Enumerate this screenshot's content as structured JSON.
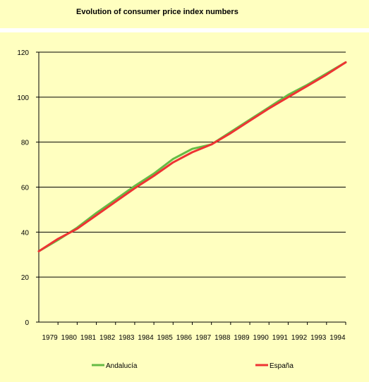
{
  "chart_data": {
    "type": "line",
    "title": "Evolution of consumer price index numbers",
    "xlabel": "",
    "ylabel": "",
    "ylim": [
      0,
      120
    ],
    "yticks": [
      0,
      20,
      40,
      60,
      80,
      100,
      120
    ],
    "xlim": [
      1978,
      1994
    ],
    "xticks": [
      1979,
      1980,
      1981,
      1982,
      1983,
      1984,
      1985,
      1986,
      1987,
      1988,
      1989,
      1990,
      1991,
      1992,
      1993,
      1994
    ],
    "grid": true,
    "legend_placement": "bottom",
    "series": [
      {
        "name": "Andalucía",
        "color": "#66bb44",
        "x": [
          1978,
          1979,
          1980,
          1981,
          1982,
          1983,
          1984,
          1985,
          1986,
          1987,
          1988,
          1989,
          1990,
          1991,
          1992,
          1993,
          1994
        ],
        "values": [
          31.5,
          36.5,
          42.0,
          48.5,
          54.5,
          60.5,
          66.0,
          72.5,
          77.0,
          79.0,
          84.5,
          90.0,
          95.5,
          101.0,
          105.5,
          110.5,
          115.5
        ]
      },
      {
        "name": "España",
        "color": "#ee3333",
        "x": [
          1978,
          1979,
          1980,
          1981,
          1982,
          1983,
          1984,
          1985,
          1986,
          1987,
          1988,
          1989,
          1990,
          1991,
          1992,
          1993,
          1994
        ],
        "values": [
          31.5,
          37.0,
          41.5,
          47.5,
          53.5,
          59.5,
          65.0,
          71.0,
          75.5,
          79.0,
          84.0,
          89.5,
          95.0,
          100.0,
          105.0,
          110.0,
          115.5
        ]
      }
    ]
  }
}
